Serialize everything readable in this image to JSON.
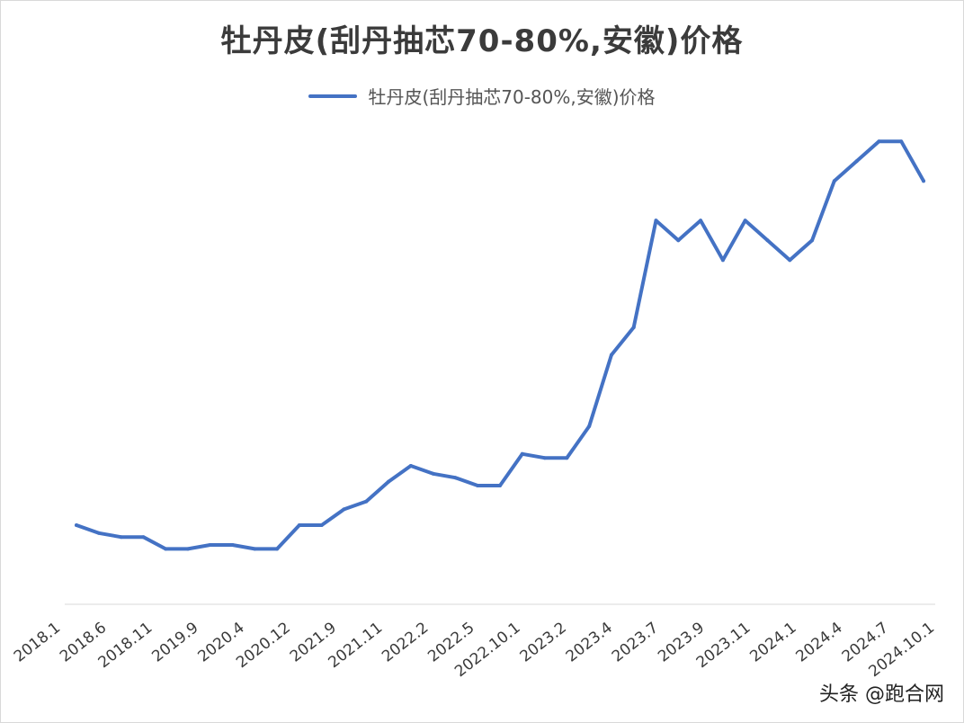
{
  "chart_data": {
    "type": "line",
    "title": "牡丹皮(刮丹抽芯70-80%,安徽)价格",
    "legend": "top-center",
    "grid": false,
    "series": [
      {
        "name": "牡丹皮(刮丹抽芯70-80%,安徽)价格",
        "color": "#4472c4",
        "values": [
          20,
          18,
          17,
          17,
          14,
          14,
          15,
          15,
          14,
          14,
          20,
          20,
          24,
          26,
          31,
          35,
          33,
          32,
          30,
          30,
          38,
          37,
          37,
          45,
          63,
          70,
          97,
          92,
          97,
          87,
          97,
          92,
          87,
          92,
          107,
          112,
          117,
          117,
          107
        ]
      }
    ],
    "x_tick_labels": [
      "2018.1",
      "2018.6",
      "2018.11",
      "2019.9",
      "2020.4",
      "2020.12",
      "2021.9",
      "2021.11",
      "2022.2",
      "2022.5",
      "2022.10.1",
      "2023.2",
      "2023.4",
      "2023.7",
      "2023.9",
      "2023.11",
      "2024.1",
      "2024.4",
      "2024.7",
      "2024.10.1"
    ],
    "ylim": [
      0,
      130
    ]
  },
  "watermark": "头条 @跑合网"
}
